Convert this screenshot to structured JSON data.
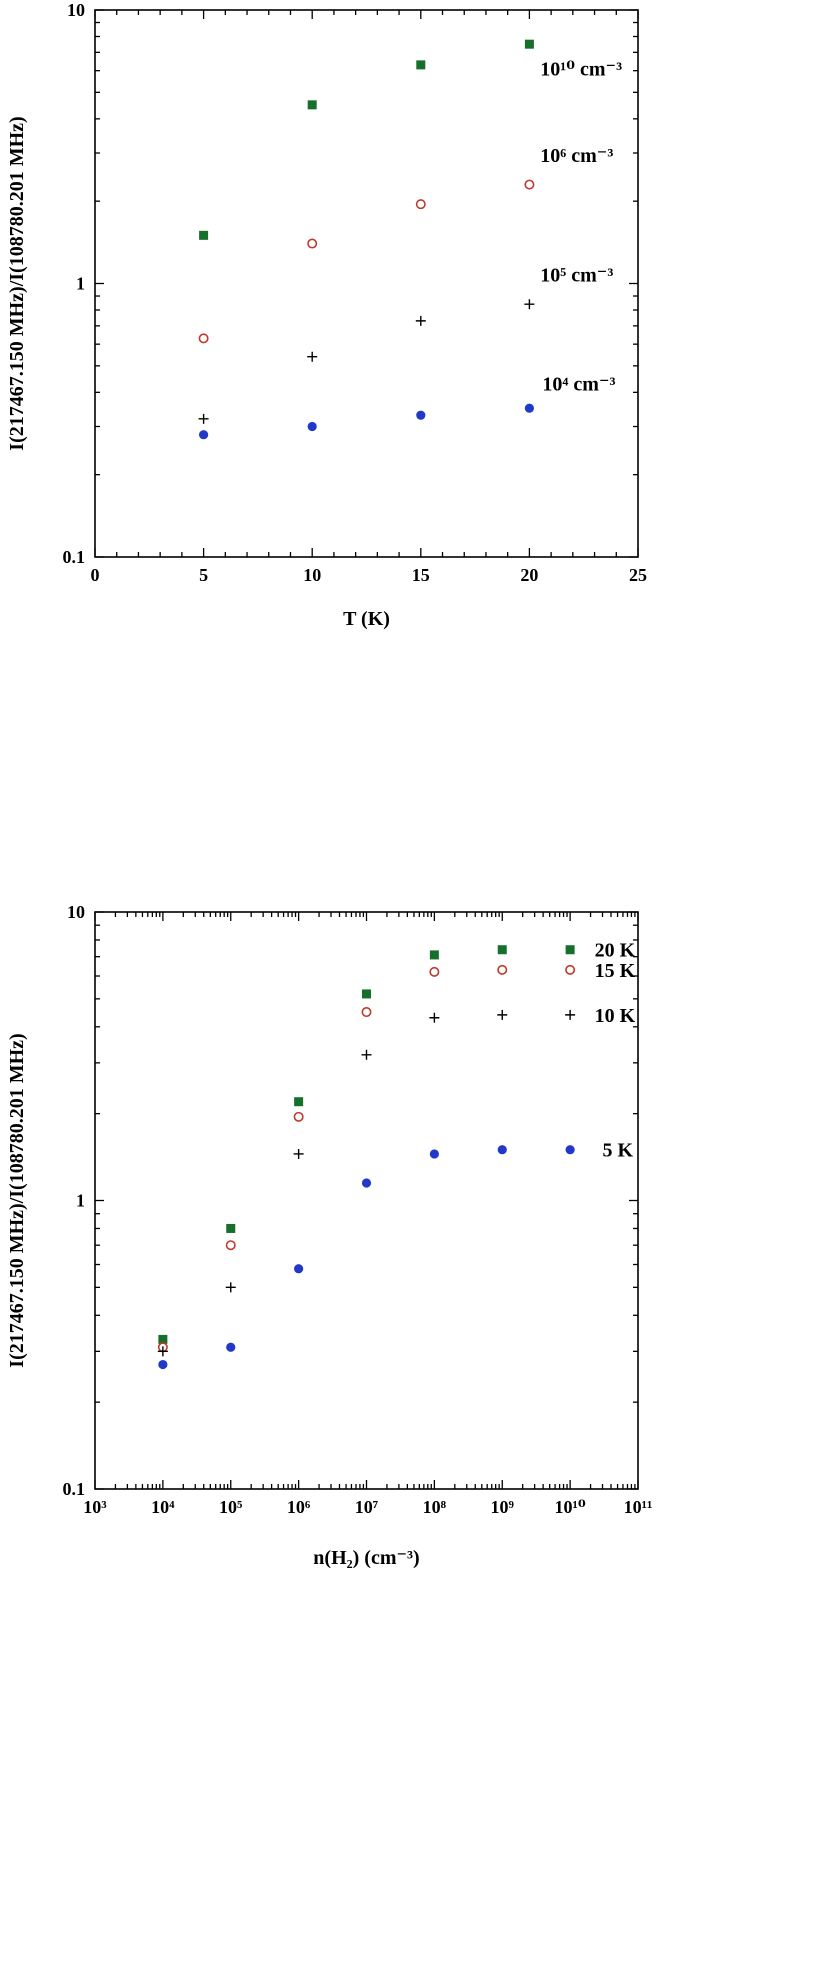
{
  "chart_data": [
    {
      "type": "scatter",
      "title": "",
      "xlabel": "T (K)",
      "ylabel": "I(217467.150 MHz)/I(108780.201 MHz)",
      "x_axis": {
        "type": "linear",
        "min": 0,
        "max": 25,
        "major_ticks": [
          0,
          5,
          10,
          15,
          20,
          25
        ],
        "tick_labels": [
          "0",
          "5",
          "10",
          "15",
          "20",
          "25"
        ],
        "minor_step": 1
      },
      "y_axis": {
        "type": "log",
        "min": 0.1,
        "max": 10,
        "major_ticks": [
          0.1,
          1,
          10
        ],
        "tick_labels": [
          "0.1",
          "1",
          "10"
        ]
      },
      "grid": false,
      "series": [
        {
          "name": "10¹⁰ cm⁻³",
          "marker": "square-filled",
          "color": "#176f2c",
          "x": [
            5,
            10,
            15,
            20
          ],
          "y": [
            1.5,
            4.5,
            6.3,
            7.5
          ]
        },
        {
          "name": "10⁶ cm⁻³",
          "marker": "circle-open",
          "color": "#c0392b",
          "x": [
            5,
            10,
            15,
            20
          ],
          "y": [
            0.63,
            1.4,
            1.95,
            2.3
          ]
        },
        {
          "name": "10⁵ cm⁻³",
          "marker": "plus",
          "color": "#000000",
          "x": [
            5,
            10,
            15,
            20
          ],
          "y": [
            0.32,
            0.54,
            0.73,
            0.84
          ]
        },
        {
          "name": "10⁴ cm⁻³",
          "marker": "circle-filled",
          "color": "#2238c8",
          "x": [
            5,
            10,
            15,
            20
          ],
          "y": [
            0.28,
            0.3,
            0.33,
            0.35
          ]
        }
      ],
      "annotations": [
        {
          "text": "10¹⁰ cm⁻³",
          "color": "#176f2c",
          "x": 20.5,
          "y": 6.1
        },
        {
          "text": "10⁶ cm⁻³",
          "color": "#cc0000",
          "x": 20.5,
          "y": 2.95
        },
        {
          "text": "10⁵ cm⁻³",
          "color": "#000000",
          "x": 20.5,
          "y": 1.08
        },
        {
          "text": "10⁴ cm⁻³",
          "color": "#2238c8",
          "x": 20.6,
          "y": 0.43
        }
      ]
    },
    {
      "type": "scatter",
      "title": "",
      "xlabel": "n(H₂) (cm⁻³)",
      "ylabel": "I(217467.150 MHz)/I(108780.201 MHz)",
      "x_axis": {
        "type": "log",
        "min": 1000.0,
        "max": 100000000000.0,
        "major_ticks": [
          1000.0,
          10000.0,
          100000.0,
          1000000.0,
          10000000.0,
          100000000.0,
          1000000000.0,
          10000000000.0,
          100000000000.0
        ],
        "tick_labels": [
          "10³",
          "10⁴",
          "10⁵",
          "10⁶",
          "10⁷",
          "10⁸",
          "10⁹",
          "10¹⁰",
          "10¹¹"
        ]
      },
      "y_axis": {
        "type": "log",
        "min": 0.1,
        "max": 10,
        "major_ticks": [
          0.1,
          1,
          10
        ],
        "tick_labels": [
          "0.1",
          "1",
          "10"
        ]
      },
      "grid": false,
      "series": [
        {
          "name": "20 K",
          "marker": "square-filled",
          "color": "#176f2c",
          "x": [
            10000.0,
            100000.0,
            1000000.0,
            10000000.0,
            100000000.0,
            1000000000.0,
            10000000000.0
          ],
          "y": [
            0.33,
            0.8,
            2.2,
            5.2,
            7.1,
            7.4,
            7.4
          ]
        },
        {
          "name": "15 K",
          "marker": "circle-open",
          "color": "#c0392b",
          "x": [
            10000.0,
            100000.0,
            1000000.0,
            10000000.0,
            100000000.0,
            1000000000.0,
            10000000000.0
          ],
          "y": [
            0.31,
            0.7,
            1.95,
            4.5,
            6.2,
            6.3,
            6.3
          ]
        },
        {
          "name": "10 K",
          "marker": "plus",
          "color": "#000000",
          "x": [
            10000.0,
            100000.0,
            1000000.0,
            10000000.0,
            100000000.0,
            1000000000.0,
            10000000000.0
          ],
          "y": [
            0.3,
            0.5,
            1.45,
            3.2,
            4.3,
            4.4,
            4.4
          ]
        },
        {
          "name": "5 K",
          "marker": "circle-filled",
          "color": "#2238c8",
          "x": [
            10000.0,
            100000.0,
            1000000.0,
            10000000.0,
            100000000.0,
            1000000000.0,
            10000000000.0
          ],
          "y": [
            0.27,
            0.31,
            0.58,
            1.15,
            1.45,
            1.5,
            1.5
          ]
        }
      ],
      "annotations": [
        {
          "text": "20 K",
          "color": "#176f2c",
          "x": 23000000000.0,
          "y": 7.4
        },
        {
          "text": "15 K",
          "color": "#cc0000",
          "x": 23000000000.0,
          "y": 6.3
        },
        {
          "text": "10 K",
          "color": "#000000",
          "x": 23000000000.0,
          "y": 4.4
        },
        {
          "text": "5 K",
          "color": "#2238c8",
          "x": 30000000000.0,
          "y": 1.5
        }
      ]
    }
  ]
}
